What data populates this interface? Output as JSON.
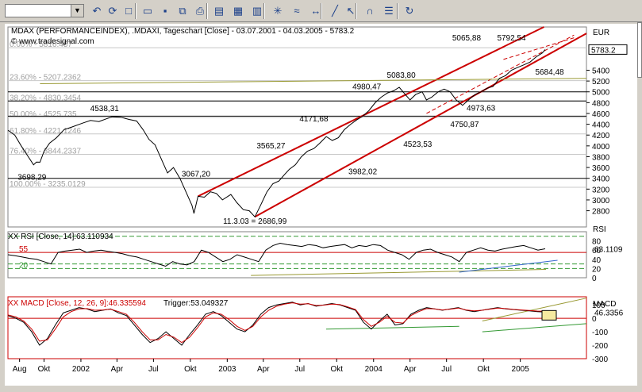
{
  "toolbar": {
    "symbol_value": "",
    "buttons": [
      {
        "name": "undo-icon",
        "glyph": "↶"
      },
      {
        "name": "refresh-icon",
        "glyph": "⟳"
      },
      {
        "name": "new-icon",
        "glyph": "□"
      },
      {
        "name": "open-icon",
        "glyph": "▭"
      },
      {
        "name": "save-icon",
        "glyph": "▪"
      },
      {
        "name": "copy-icon",
        "glyph": "⧉"
      },
      {
        "name": "print-icon",
        "glyph": "⎙"
      },
      {
        "name": "chart-icon",
        "glyph": "▤"
      },
      {
        "name": "export-icon",
        "glyph": "▦"
      },
      {
        "name": "layout-icon",
        "glyph": "▥"
      },
      {
        "name": "indicator-icon",
        "glyph": "✳"
      },
      {
        "name": "study-icon",
        "glyph": "≈"
      },
      {
        "name": "scale-icon",
        "glyph": "↔"
      },
      {
        "name": "draw-line-icon",
        "glyph": "╱"
      },
      {
        "name": "pointer-icon",
        "glyph": "↖"
      },
      {
        "name": "magnet-icon",
        "glyph": "∩"
      },
      {
        "name": "settings-icon",
        "glyph": "☰"
      },
      {
        "name": "reload-icon",
        "glyph": "↻"
      }
    ]
  },
  "chart_data": [
    {
      "type": "line",
      "title": "MDAX (PERFORMANCEINDEX), .MDAXI, Tageschart [Close] - 03.07.2001 - 04.03.2005 - 5783.2",
      "watermark": "© www.tradesignal.com",
      "ylabel": "EUR",
      "ylim": [
        2500,
        6200
      ],
      "yticks": [
        2800,
        3000,
        3200,
        3400,
        3600,
        3800,
        4000,
        4200,
        4400,
        4600,
        4800,
        5000,
        5200,
        5400
      ],
      "last_value_label": "5783.2",
      "x_ticks": [
        {
          "label": "Aug",
          "date": "2001-08-01"
        },
        {
          "label": "Okt",
          "date": "2001-10-01"
        },
        {
          "label": "2002",
          "date": "2002-01-01"
        },
        {
          "label": "Apr",
          "date": "2002-04-01"
        },
        {
          "label": "Jul",
          "date": "2002-07-01"
        },
        {
          "label": "Okt",
          "date": "2002-10-01"
        },
        {
          "label": "2003",
          "date": "2003-01-01"
        },
        {
          "label": "Apr",
          "date": "2003-04-01"
        },
        {
          "label": "Jul",
          "date": "2003-07-01"
        },
        {
          "label": "Okt",
          "date": "2003-10-01"
        },
        {
          "label": "2004",
          "date": "2004-01-01"
        },
        {
          "label": "Apr",
          "date": "2004-04-01"
        },
        {
          "label": "Jul",
          "date": "2004-07-01"
        },
        {
          "label": "Okt",
          "date": "2004-10-01"
        },
        {
          "label": "2005",
          "date": "2005-01-01"
        }
      ],
      "xlim": [
        "2001-07-03",
        "2005-06-15"
      ],
      "series": [
        {
          "name": "Close",
          "color": "#000000",
          "points": [
            [
              "2001-07-03",
              4290
            ],
            [
              "2001-07-20",
              4200
            ],
            [
              "2001-08-05",
              4000
            ],
            [
              "2001-08-20",
              3830
            ],
            [
              "2001-09-05",
              3650
            ],
            [
              "2001-09-12",
              3700
            ],
            [
              "2001-09-21",
              3698.29
            ],
            [
              "2001-10-01",
              3900
            ],
            [
              "2001-10-15",
              4050
            ],
            [
              "2001-11-01",
              4150
            ],
            [
              "2001-11-20",
              4300
            ],
            [
              "2001-12-10",
              4350
            ],
            [
              "2002-01-05",
              4420
            ],
            [
              "2002-01-25",
              4470
            ],
            [
              "2002-02-15",
              4450
            ],
            [
              "2002-03-05",
              4500
            ],
            [
              "2002-03-20",
              4538.31
            ],
            [
              "2002-04-10",
              4530
            ],
            [
              "2002-05-01",
              4490
            ],
            [
              "2002-05-20",
              4460
            ],
            [
              "2002-06-05",
              4300
            ],
            [
              "2002-06-20",
              4120
            ],
            [
              "2002-07-05",
              4020
            ],
            [
              "2002-07-24",
              3700
            ],
            [
              "2002-08-05",
              3500
            ],
            [
              "2002-08-20",
              3600
            ],
            [
              "2002-09-05",
              3400
            ],
            [
              "2002-09-20",
              3150
            ],
            [
              "2002-10-05",
              2900
            ],
            [
              "2002-10-10",
              2750
            ],
            [
              "2002-10-20",
              3067.2
            ],
            [
              "2002-11-05",
              3050
            ],
            [
              "2002-11-20",
              3150
            ],
            [
              "2002-12-05",
              3120
            ],
            [
              "2002-12-20",
              3000
            ],
            [
              "2003-01-10",
              3100
            ],
            [
              "2003-01-25",
              2950
            ],
            [
              "2003-02-10",
              2820
            ],
            [
              "2003-02-25",
              2800
            ],
            [
              "2003-03-11",
              2686.99
            ],
            [
              "2003-03-25",
              2900
            ],
            [
              "2003-04-10",
              3150
            ],
            [
              "2003-04-25",
              3300
            ],
            [
              "2003-05-10",
              3350
            ],
            [
              "2003-05-25",
              3480
            ],
            [
              "2003-06-05",
              3565.27
            ],
            [
              "2003-06-20",
              3650
            ],
            [
              "2003-07-05",
              3800
            ],
            [
              "2003-07-20",
              3900
            ],
            [
              "2003-08-05",
              3950
            ],
            [
              "2003-08-20",
              4050
            ],
            [
              "2003-09-05",
              4171.68
            ],
            [
              "2003-09-20",
              4100
            ],
            [
              "2003-10-05",
              4150
            ],
            [
              "2003-10-20",
              4300
            ],
            [
              "2003-11-05",
              4400
            ],
            [
              "2003-11-20",
              4480
            ],
            [
              "2003-12-05",
              4550
            ],
            [
              "2003-12-20",
              4650
            ],
            [
              "2004-01-05",
              4800
            ],
            [
              "2004-01-20",
              4900
            ],
            [
              "2004-02-05",
              4980.47
            ],
            [
              "2004-02-20",
              5020
            ],
            [
              "2004-03-05",
              5083.8
            ],
            [
              "2004-03-20",
              4950
            ],
            [
              "2004-04-01",
              4850
            ],
            [
              "2004-04-15",
              4950
            ],
            [
              "2004-05-01",
              5000
            ],
            [
              "2004-05-12",
              4850
            ],
            [
              "2004-05-25",
              4900
            ],
            [
              "2004-06-10",
              5000
            ],
            [
              "2004-06-25",
              5050
            ],
            [
              "2004-07-10",
              5000
            ],
            [
              "2004-07-25",
              4850
            ],
            [
              "2004-08-10",
              4750.87
            ],
            [
              "2004-08-25",
              4850
            ],
            [
              "2004-09-10",
              4950
            ],
            [
              "2004-09-25",
              5000
            ],
            [
              "2004-10-10",
              5065.88
            ],
            [
              "2004-10-25",
              5100
            ],
            [
              "2004-11-10",
              5250
            ],
            [
              "2004-11-25",
              5300
            ],
            [
              "2004-12-10",
              5400
            ],
            [
              "2004-12-25",
              5450
            ],
            [
              "2005-01-10",
              5500
            ],
            [
              "2005-01-25",
              5550
            ],
            [
              "2005-02-10",
              5650
            ],
            [
              "2005-02-25",
              5720
            ],
            [
              "2005-03-04",
              5783.2
            ]
          ]
        }
      ],
      "fibonacci_levels": [
        {
          "label": "0.00% - 5816.457",
          "value": 5816.457
        },
        {
          "label": "23.60% - 5207.2362",
          "value": 5207.2362
        },
        {
          "label": "38.20% - 4830.3454",
          "value": 4830.3454
        },
        {
          "label": "50.00% - 4525.735",
          "value": 4525.735
        },
        {
          "label": "61.80% - 4221.1246",
          "value": 4221.1246
        },
        {
          "label": "76.40% - 3844.2337",
          "value": 3844.2337
        },
        {
          "label": "100.00% - 3235.0129",
          "value": 3235.0129
        }
      ],
      "horizontal_lines": [
        5000,
        4550,
        4830,
        3400
      ],
      "trend_lines": [
        {
          "kind": "channel-upper",
          "color": "#cc0000",
          "from": [
            "2002-10-20",
            3067.2
          ],
          "to": [
            "2005-03-01",
            6200
          ]
        },
        {
          "kind": "channel-lower",
          "color": "#cc0000",
          "from": [
            "2003-03-11",
            2686.99
          ],
          "to": [
            "2005-06-15",
            6080
          ]
        },
        {
          "kind": "dashed",
          "color": "#cc0000",
          "from": [
            "2004-05-12",
            4600
          ],
          "to": [
            "2005-05-15",
            6050
          ]
        },
        {
          "kind": "dashed",
          "color": "#cc0000",
          "from": [
            "2004-11-20",
            5600
          ],
          "to": [
            "2005-05-15",
            6000
          ]
        },
        {
          "kind": "support",
          "color": "#999933",
          "from": [
            "2001-09-21",
            5150
          ],
          "to": [
            "2005-06-15",
            5250
          ]
        }
      ],
      "annotations": [
        {
          "text": "4538,31",
          "x": "2002-03-01",
          "y": 4640
        },
        {
          "text": "3698,29",
          "x": "2001-09-01",
          "y": 3370
        },
        {
          "text": "3067,20",
          "x": "2002-10-15",
          "y": 3430
        },
        {
          "text": "11.3.03 = 2686,99",
          "x": "2003-03-11",
          "y": 2560
        },
        {
          "text": "3565,27",
          "x": "2003-04-20",
          "y": 3950
        },
        {
          "text": "4171,68",
          "x": "2003-08-05",
          "y": 4450
        },
        {
          "text": "3982,02",
          "x": "2003-12-05",
          "y": 3480
        },
        {
          "text": "4980,47",
          "x": "2003-12-15",
          "y": 5050
        },
        {
          "text": "5083,80",
          "x": "2004-03-10",
          "y": 5260
        },
        {
          "text": "5065,88",
          "x": "2004-08-20",
          "y": 5950
        },
        {
          "text": "5792,54",
          "x": "2004-12-10",
          "y": 5950
        },
        {
          "text": "5684,48",
          "x": "2005-03-15",
          "y": 5320
        },
        {
          "text": "4973,63",
          "x": "2004-09-25",
          "y": 4650
        },
        {
          "text": "4750,87",
          "x": "2004-08-15",
          "y": 4350
        },
        {
          "text": "4523,53",
          "x": "2004-04-20",
          "y": 3980
        }
      ]
    },
    {
      "type": "line",
      "title": "XX RSI [Close, 14]:63.110934",
      "ylabel": "RSI",
      "ylim": [
        0,
        100
      ],
      "yticks": [
        0,
        20,
        40,
        60,
        80
      ],
      "last_value_label": "63.1109",
      "level_labels": [
        {
          "text": "55",
          "value": 55
        },
        {
          "text": "20",
          "value": 20
        }
      ],
      "level_lines": [
        90,
        55,
        30,
        20
      ],
      "series": [
        {
          "name": "RSI",
          "color": "#000000",
          "values": [
            50,
            48,
            45,
            42,
            40,
            35,
            30,
            55,
            58,
            60,
            62,
            55,
            58,
            60,
            57,
            55,
            52,
            48,
            45,
            40,
            35,
            30,
            25,
            35,
            30,
            28,
            35,
            60,
            55,
            45,
            35,
            40,
            50,
            45,
            40,
            35,
            60,
            70,
            75,
            72,
            70,
            68,
            72,
            70,
            65,
            68,
            70,
            72,
            65,
            70,
            68,
            72,
            70,
            60,
            55,
            50,
            40,
            55,
            60,
            62,
            55,
            50,
            45,
            35,
            55,
            60,
            65,
            60,
            58,
            62,
            65,
            68,
            70,
            65,
            60,
            63
          ]
        }
      ],
      "trend_lines": [
        {
          "kind": "support",
          "color": "#999933",
          "from": [
            0.42,
            5
          ],
          "to": [
            0.93,
            18
          ]
        },
        {
          "kind": "blue",
          "color": "#3366cc",
          "from": [
            0.78,
            12
          ],
          "to": [
            0.95,
            38
          ]
        }
      ]
    },
    {
      "type": "line",
      "title": "XX MACD [Close, 12, 26, 9]:46.335594",
      "trigger_label": "Trigger:53.049327",
      "ylabel": "MACD",
      "ylim": [
        -300,
        160
      ],
      "yticks": [
        -300,
        -200,
        -100,
        0,
        100
      ],
      "last_value_label": "46.3356",
      "series": [
        {
          "name": "MACD",
          "color": "#000000",
          "values": [
            20,
            0,
            -30,
            -100,
            -200,
            -150,
            -50,
            40,
            60,
            80,
            70,
            50,
            60,
            70,
            40,
            20,
            -50,
            -120,
            -180,
            -150,
            -100,
            -150,
            -200,
            -120,
            -50,
            30,
            50,
            20,
            -30,
            -80,
            -100,
            -50,
            30,
            80,
            100,
            110,
            120,
            100,
            110,
            90,
            100,
            110,
            100,
            80,
            60,
            -30,
            -80,
            -20,
            30,
            -50,
            -40,
            30,
            60,
            80,
            70,
            60,
            70,
            80,
            60,
            50,
            60,
            70,
            80,
            70,
            65,
            60,
            55,
            50,
            46
          ]
        },
        {
          "name": "Trigger",
          "color": "#cc0000",
          "values": [
            25,
            10,
            -20,
            -80,
            -170,
            -160,
            -80,
            10,
            50,
            70,
            72,
            60,
            62,
            68,
            50,
            30,
            -30,
            -100,
            -160,
            -160,
            -120,
            -140,
            -180,
            -140,
            -70,
            10,
            40,
            30,
            -10,
            -60,
            -90,
            -60,
            10,
            60,
            90,
            105,
            115,
            105,
            108,
            95,
            98,
            105,
            102,
            85,
            65,
            -10,
            -60,
            -30,
            15,
            -30,
            -35,
            20,
            50,
            72,
            70,
            62,
            68,
            76,
            62,
            55,
            60,
            68,
            76,
            72,
            66,
            62,
            58,
            54,
            53
          ]
        }
      ],
      "trend_lines": [
        {
          "kind": "support",
          "color": "#999933",
          "from": [
            0.82,
            -20
          ],
          "to": [
            1.0,
            150
          ]
        },
        {
          "kind": "green",
          "color": "#339933",
          "from": [
            0.82,
            -100
          ],
          "to": [
            1.0,
            -40
          ]
        },
        {
          "kind": "green",
          "color": "#339933",
          "from": [
            0.55,
            -80
          ],
          "to": [
            0.78,
            -60
          ]
        }
      ]
    }
  ]
}
